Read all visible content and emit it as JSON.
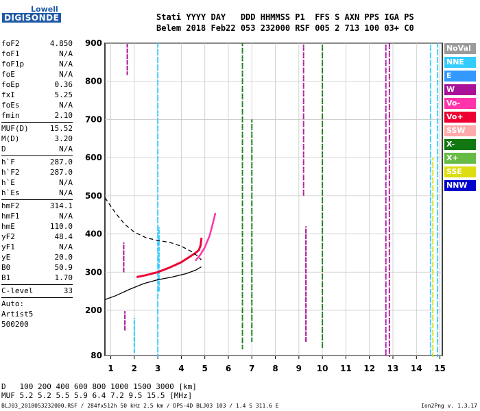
{
  "logo": {
    "top": "Lowell",
    "bottom": "DIGISONDE"
  },
  "header": {
    "line1": "Stati YYYY DAY   DDD HHMMSS P1  FFS S AXN PPS IGA PS",
    "line2": "Belem 2018 Feb22 053 232000 RSF 005 2 713 100 03+ C0"
  },
  "params": [
    {
      "label": "foF2",
      "value": "4.850"
    },
    {
      "label": "foF1",
      "value": "N/A"
    },
    {
      "label": "foF1p",
      "value": "N/A"
    },
    {
      "label": "foE",
      "value": "N/A"
    },
    {
      "label": "foEp",
      "value": "0.36"
    },
    {
      "label": "fxI",
      "value": "5.25"
    },
    {
      "label": "foEs",
      "value": "N/A"
    },
    {
      "label": "fmin",
      "value": "2.10"
    },
    {
      "sep": true
    },
    {
      "label": "MUF(D)",
      "value": "15.52"
    },
    {
      "label": "M(D)",
      "value": "3.20"
    },
    {
      "label": "D",
      "value": "N/A"
    },
    {
      "sep": true
    },
    {
      "label": "h`F",
      "value": "287.0"
    },
    {
      "label": "h`F2",
      "value": "287.0"
    },
    {
      "label": "h`E",
      "value": "N/A"
    },
    {
      "label": "h`Es",
      "value": "N/A"
    },
    {
      "sep": true
    },
    {
      "label": "hmF2",
      "value": "314.1"
    },
    {
      "label": "hmF1",
      "value": "N/A"
    },
    {
      "label": "hmE",
      "value": "110.0"
    },
    {
      "label": "yF2",
      "value": "48.4"
    },
    {
      "label": "yF1",
      "value": "N/A"
    },
    {
      "label": "yE",
      "value": "20.0"
    },
    {
      "label": "B0",
      "value": "50.9"
    },
    {
      "label": "B1",
      "value": "1.70"
    },
    {
      "sep": true
    },
    {
      "label": "C-level",
      "value": "33"
    },
    {
      "sep": true
    },
    {
      "label": "Auto:",
      "value": ""
    },
    {
      "label": "Artist5",
      "value": ""
    },
    {
      "label": "500200",
      "value": ""
    }
  ],
  "legend": [
    {
      "name": "NoVal",
      "color": "#9a9a9a"
    },
    {
      "name": "NNE",
      "color": "#33ccff"
    },
    {
      "name": "E",
      "color": "#3399ff"
    },
    {
      "name": "W",
      "color": "#aa1199"
    },
    {
      "name": "Vo-",
      "color": "#ff33aa"
    },
    {
      "name": "Vo+",
      "color": "#ee0033"
    },
    {
      "name": "SSW",
      "color": "#ffaaaa"
    },
    {
      "name": "X-",
      "color": "#117711"
    },
    {
      "name": "X+",
      "color": "#66bb44"
    },
    {
      "name": "SSE",
      "color": "#dddd11"
    },
    {
      "name": "NNW",
      "color": "#0000cc"
    }
  ],
  "mufTable": {
    "dLabel": "D",
    "mufLabel": "MUF",
    "distances": [
      "100",
      "200",
      "400",
      "600",
      "800",
      "1000",
      "1500",
      "3000"
    ],
    "distUnit": "[km]",
    "mufs": [
      "5.2",
      "5.2",
      "5.5",
      "5.9",
      "6.4",
      "7.2",
      "9.5",
      "15.5"
    ],
    "mufUnit": "[MHz]"
  },
  "footer": {
    "left": "BLJ03_2018053232000.RSF / 284fx512h 50 kHz 2.5 km / DPS-4D BLJ03 103 / 1.4 S 311.6 E",
    "right": "Ion2Png v. 1.3.17"
  },
  "chart_data": {
    "type": "scatter",
    "xlim": [
      0.75,
      15.1
    ],
    "ylim": [
      80,
      900
    ],
    "xticks": [
      1,
      2,
      3,
      4,
      5,
      6,
      7,
      8,
      9,
      10,
      11,
      12,
      13,
      14,
      15
    ],
    "yticks": [
      80,
      200,
      300,
      400,
      500,
      600,
      700,
      800,
      900
    ],
    "grid": true,
    "profile_solid": [
      [
        0.75,
        228
      ],
      [
        1.2,
        238
      ],
      [
        1.8,
        255
      ],
      [
        2.4,
        270
      ],
      [
        3.0,
        280
      ],
      [
        3.6,
        287
      ],
      [
        4.2,
        296
      ],
      [
        4.6,
        305
      ],
      [
        4.85,
        314
      ]
    ],
    "profile_dashed": [
      [
        0.75,
        495
      ],
      [
        1.2,
        455
      ],
      [
        1.6,
        425
      ],
      [
        2.0,
        405
      ],
      [
        2.5,
        390
      ],
      [
        3.0,
        383
      ],
      [
        3.5,
        378
      ],
      [
        4.0,
        368
      ],
      [
        4.4,
        355
      ],
      [
        4.7,
        342
      ],
      [
        4.85,
        332
      ]
    ],
    "trace_o": [
      [
        2.1,
        287
      ],
      [
        2.5,
        292
      ],
      [
        3.0,
        300
      ],
      [
        3.5,
        312
      ],
      [
        4.0,
        326
      ],
      [
        4.3,
        338
      ],
      [
        4.6,
        350
      ],
      [
        4.75,
        358
      ],
      [
        4.82,
        370
      ],
      [
        4.86,
        390
      ]
    ],
    "trace_x": [
      [
        4.6,
        330
      ],
      [
        4.8,
        345
      ],
      [
        5.0,
        365
      ],
      [
        5.2,
        395
      ],
      [
        5.35,
        430
      ],
      [
        5.45,
        455
      ]
    ],
    "echo_groups": [
      {
        "series": "W",
        "x": 1.55,
        "y": [
          300,
          380
        ]
      },
      {
        "series": "W",
        "x": 1.6,
        "y": [
          150,
          200
        ]
      },
      {
        "series": "W",
        "x": 1.7,
        "y": [
          820,
          900
        ]
      },
      {
        "series": "NNE",
        "x": 2.0,
        "y": [
          90,
          180
        ]
      },
      {
        "series": "NNE",
        "x": 3.0,
        "y": [
          80,
          900
        ]
      },
      {
        "series": "NNE",
        "x": 3.05,
        "y": [
          250,
          420
        ]
      },
      {
        "series": "X-",
        "x": 6.6,
        "y": [
          100,
          900
        ]
      },
      {
        "series": "X-",
        "x": 7.0,
        "y": [
          120,
          700
        ]
      },
      {
        "series": "W",
        "x": 9.2,
        "y": [
          500,
          900
        ]
      },
      {
        "series": "W",
        "x": 9.3,
        "y": [
          120,
          420
        ]
      },
      {
        "series": "X-",
        "x": 10.0,
        "y": [
          100,
          900
        ]
      },
      {
        "series": "W",
        "x": 12.7,
        "y": [
          80,
          900
        ]
      },
      {
        "series": "W",
        "x": 12.85,
        "y": [
          80,
          900
        ]
      },
      {
        "series": "NNE",
        "x": 14.6,
        "y": [
          80,
          900
        ]
      },
      {
        "series": "SSE",
        "x": 14.7,
        "y": [
          80,
          600
        ]
      },
      {
        "series": "NNE",
        "x": 14.9,
        "y": [
          80,
          900
        ]
      }
    ]
  }
}
